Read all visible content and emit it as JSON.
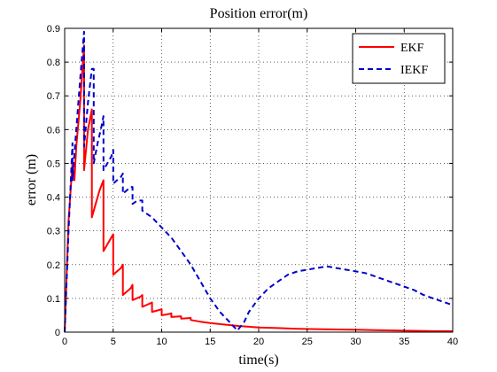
{
  "chart_data": {
    "type": "line",
    "title": "Position error(m)",
    "xlabel": "time(s)",
    "ylabel": "error (m)",
    "xlim": [
      0,
      40
    ],
    "ylim": [
      0,
      0.9
    ],
    "x_ticks": [
      0,
      5,
      10,
      15,
      20,
      25,
      30,
      35,
      40
    ],
    "y_ticks": [
      0,
      0.1,
      0.2,
      0.3,
      0.4,
      0.5,
      0.6,
      0.7,
      0.8,
      0.9
    ],
    "grid": true,
    "legend_position": "top-right",
    "series": [
      {
        "name": "EKF",
        "color": "#ff0000",
        "dash": "solid",
        "x": [
          0,
          0.4,
          0.8,
          1.0,
          1.2,
          1.6,
          2.0,
          2.0,
          2.4,
          2.8,
          2.8,
          3.2,
          3.6,
          4.0,
          4.0,
          4.4,
          4.8,
          5.0,
          5.0,
          5.4,
          5.8,
          6.0,
          6.0,
          6.4,
          6.8,
          7.0,
          7.0,
          7.4,
          7.8,
          8.0,
          8.0,
          8.4,
          8.8,
          9.0,
          9.0,
          9.4,
          9.8,
          10.0,
          10.0,
          10.4,
          10.8,
          11.0,
          11.0,
          11.5,
          12.0,
          12.0,
          12.5,
          13.0,
          13.0,
          14.0,
          15.0,
          16.0,
          17.0,
          18.0,
          19.0,
          20.0,
          22.0,
          24.0,
          26.0,
          28.0,
          30.0,
          32.0,
          34.0,
          36.0,
          38.0,
          40.0
        ],
        "y": [
          0,
          0.33,
          0.5,
          0.45,
          0.55,
          0.68,
          0.85,
          0.48,
          0.6,
          0.66,
          0.34,
          0.38,
          0.42,
          0.45,
          0.24,
          0.26,
          0.28,
          0.29,
          0.17,
          0.18,
          0.19,
          0.2,
          0.11,
          0.12,
          0.13,
          0.14,
          0.095,
          0.1,
          0.105,
          0.11,
          0.075,
          0.08,
          0.085,
          0.088,
          0.06,
          0.063,
          0.066,
          0.068,
          0.05,
          0.052,
          0.054,
          0.056,
          0.045,
          0.046,
          0.047,
          0.04,
          0.041,
          0.042,
          0.036,
          0.031,
          0.027,
          0.024,
          0.021,
          0.018,
          0.016,
          0.014,
          0.012,
          0.01,
          0.009,
          0.008,
          0.007,
          0.006,
          0.005,
          0.004,
          0.003,
          0.003
        ]
      },
      {
        "name": "IEKF",
        "color": "#0000cc",
        "dash": "dashed",
        "x": [
          0,
          0.4,
          0.8,
          0.8,
          1.2,
          1.6,
          2.0,
          2.0,
          2.4,
          2.8,
          3.0,
          3.0,
          3.4,
          3.8,
          4.0,
          4.0,
          4.4,
          4.8,
          5.0,
          5.0,
          5.4,
          5.8,
          6.0,
          6.0,
          6.4,
          6.8,
          7.0,
          7.0,
          7.5,
          8.0,
          8.0,
          9.0,
          10.0,
          11.0,
          12.0,
          13.0,
          14.0,
          15.0,
          16.0,
          17.0,
          17.8,
          18.5,
          19.0,
          20.0,
          21.0,
          22.0,
          23.0,
          24.0,
          25.0,
          26.0,
          27.0,
          28.0,
          29.0,
          30.0,
          31.0,
          32.0,
          33.0,
          34.0,
          35.0,
          36.0,
          37.0,
          38.0,
          39.0,
          40.0
        ],
        "y": [
          0,
          0.3,
          0.56,
          0.45,
          0.6,
          0.75,
          0.89,
          0.55,
          0.68,
          0.78,
          0.78,
          0.5,
          0.56,
          0.61,
          0.64,
          0.48,
          0.5,
          0.52,
          0.54,
          0.44,
          0.45,
          0.46,
          0.47,
          0.41,
          0.42,
          0.43,
          0.43,
          0.38,
          0.39,
          0.39,
          0.36,
          0.34,
          0.31,
          0.28,
          0.24,
          0.2,
          0.15,
          0.1,
          0.06,
          0.03,
          0.005,
          0.03,
          0.06,
          0.1,
          0.13,
          0.15,
          0.17,
          0.18,
          0.185,
          0.19,
          0.195,
          0.19,
          0.185,
          0.18,
          0.175,
          0.165,
          0.155,
          0.145,
          0.135,
          0.125,
          0.11,
          0.1,
          0.09,
          0.08
        ]
      }
    ]
  }
}
